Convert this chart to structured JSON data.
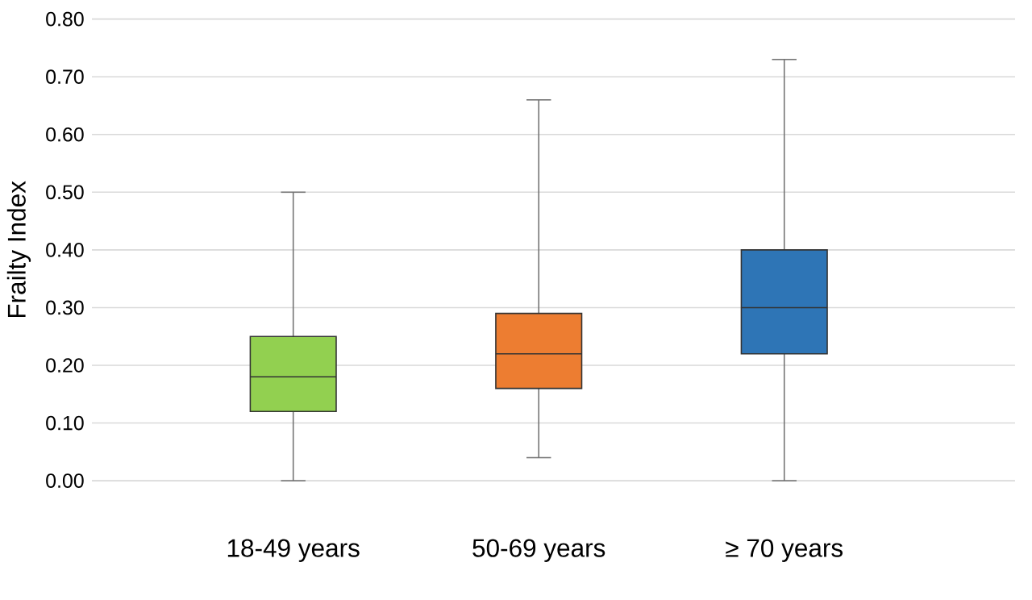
{
  "chart_data": {
    "type": "box",
    "ylabel": "Frailty Index",
    "categories": [
      "18-49 years",
      "50-69 years",
      "≥ 70 years"
    ],
    "colors": [
      "#92d050",
      "#ed7d31",
      "#2e75b6"
    ],
    "boxes": [
      {
        "low": 0.0,
        "q1": 0.12,
        "median": 0.18,
        "q3": 0.25,
        "high": 0.5
      },
      {
        "low": 0.04,
        "q1": 0.16,
        "median": 0.22,
        "q3": 0.29,
        "high": 0.66
      },
      {
        "low": 0.0,
        "q1": 0.22,
        "median": 0.3,
        "q3": 0.4,
        "high": 0.73
      }
    ],
    "ylim": [
      0,
      0.8
    ],
    "yticks": [
      {
        "value": 0,
        "label": "0.00"
      },
      {
        "value": 0.1,
        "label": "0.10"
      },
      {
        "value": 0.2,
        "label": "0.20"
      },
      {
        "value": 0.3,
        "label": "0.30"
      },
      {
        "value": 0.4,
        "label": "0.40"
      },
      {
        "value": 0.5,
        "label": "0.50"
      },
      {
        "value": 0.6,
        "label": "0.60"
      },
      {
        "value": 0.7,
        "label": "0.70"
      },
      {
        "value": 0.8,
        "label": "0.80"
      }
    ],
    "grid": "y"
  }
}
